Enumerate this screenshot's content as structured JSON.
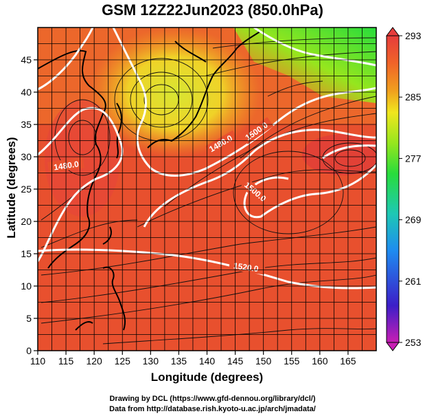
{
  "title": "GSM 12Z22Jun2023 (850.0hPa)",
  "axes": {
    "x_label": "Longitude (degrees)",
    "y_label": "Latitude  (degrees)",
    "x_ticks": [
      110,
      115,
      120,
      125,
      130,
      135,
      140,
      145,
      150,
      155,
      160,
      165
    ],
    "y_ticks": [
      0,
      5,
      10,
      15,
      20,
      25,
      30,
      35,
      40,
      45
    ],
    "xlim": [
      110,
      170
    ],
    "ylim": [
      0,
      50
    ]
  },
  "colorbar": {
    "ticks": [
      293,
      285,
      277,
      269,
      261,
      253
    ],
    "range": [
      253,
      293
    ],
    "colors": [
      "#c81eb4",
      "#3c1ec8",
      "#1e8cf0",
      "#1ec8b4",
      "#28dc3c",
      "#96e61e",
      "#f0e61e",
      "#f0a01e",
      "#f06428",
      "#e63c3c"
    ]
  },
  "contour_labels": [
    "1480.0",
    "1480.0",
    "1500.0",
    "1500.0",
    "1520.0"
  ],
  "credits": {
    "line1": "Drawing by DCL (https://www.gfd-dennou.org/library/dcl/)",
    "line2": "Data from http://database.rish.kyoto-u.ac.jp/arch/jmadata/"
  },
  "chart_data": {
    "type": "heatmap",
    "title": "GSM 12Z22Jun2023 (850.0hPa)",
    "xlabel": "Longitude (degrees)",
    "ylabel": "Latitude  (degrees)",
    "xlim": [
      110,
      170
    ],
    "ylim": [
      0,
      50
    ],
    "color_range": [
      253,
      293
    ],
    "grid": true,
    "contour_levels": [
      1480.0,
      1500.0,
      1520.0
    ]
  }
}
